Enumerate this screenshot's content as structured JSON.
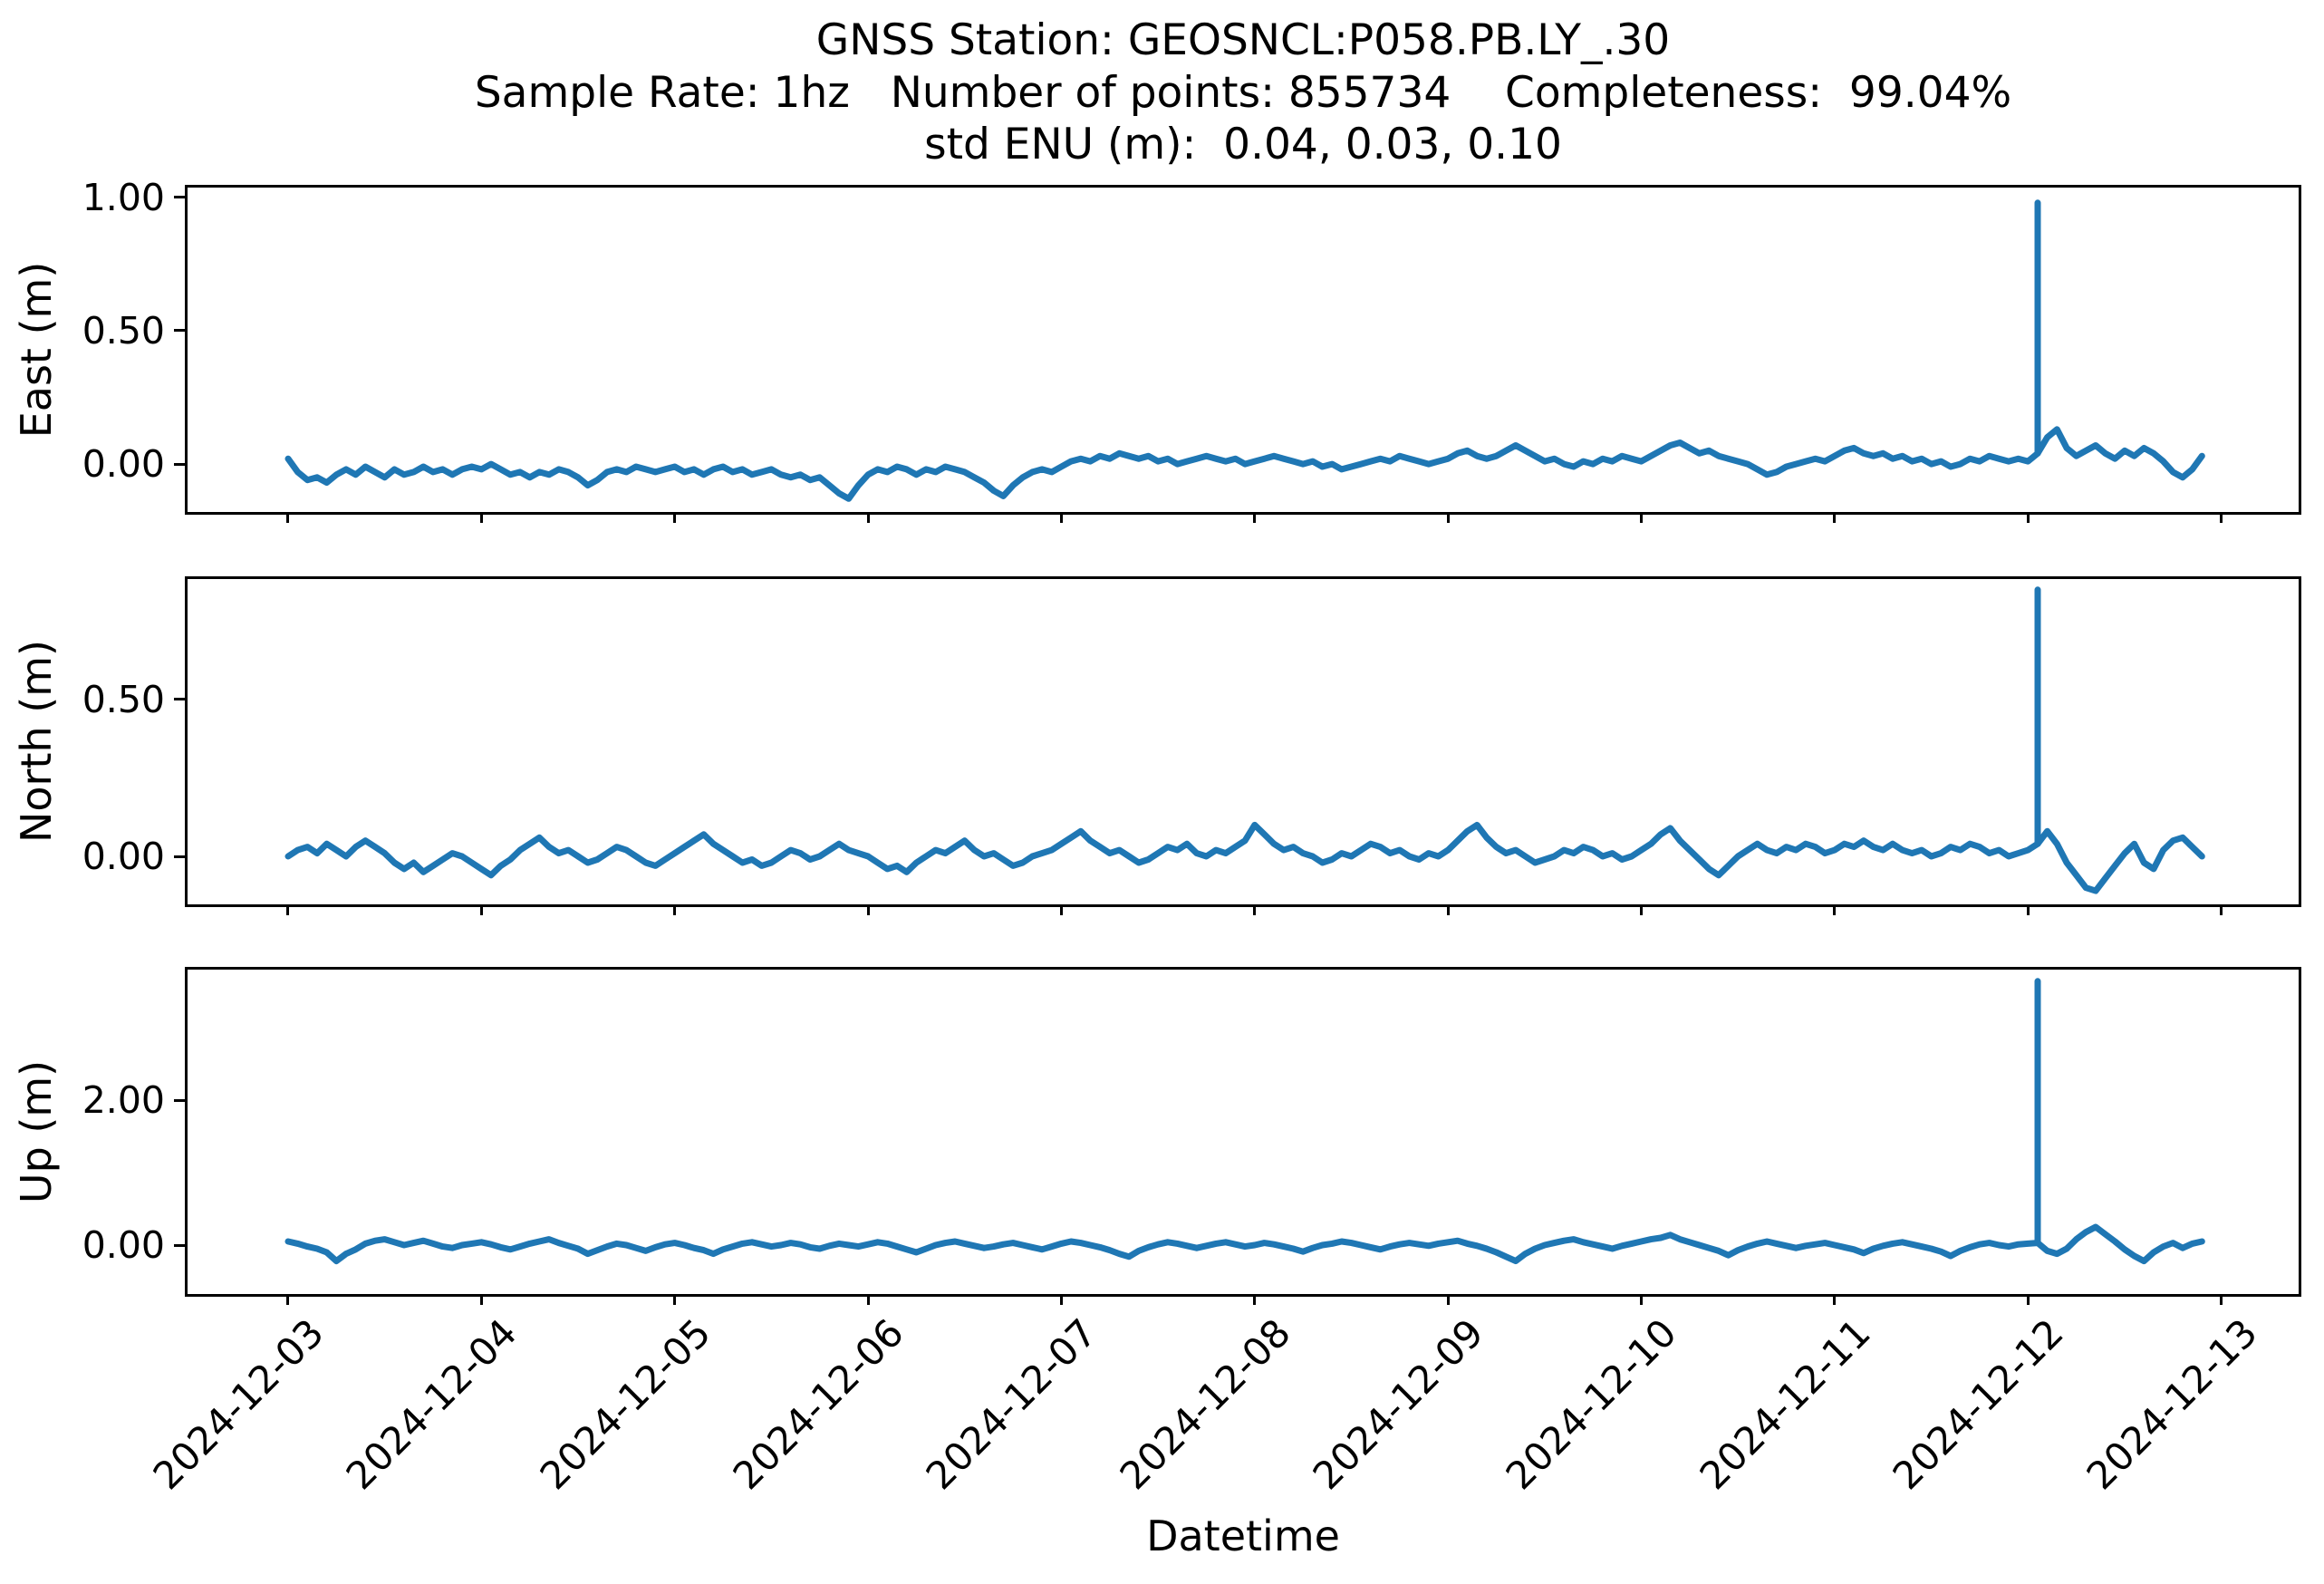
{
  "figure_title": {
    "line1": "GNSS Station: GEOSNCL:P058.PB.LY_.30",
    "line2": "Sample Rate: 1hz   Number of points: 855734    Completeness:  99.04%",
    "line3": "std ENU (m):  0.04, 0.03, 0.10"
  },
  "station": {
    "id": "GEOSNCL:P058.PB.LY_.30",
    "sample_rate": "1hz",
    "number_of_points": "855734",
    "completeness_pct": "99.04%",
    "std_enu_m": [
      "0.04",
      "0.03",
      "0.10"
    ]
  },
  "chart_data": {
    "type": "line",
    "line_color": "#1f77b4",
    "axis_color": "#000000",
    "background": "#ffffff",
    "xlabel": "Datetime",
    "legend": "none",
    "grid": false,
    "xlim_days": [
      -0.52,
      10.4
    ],
    "x_start_day": 0,
    "x_end_day": 9.9,
    "x_ticks": [
      {
        "day": 0,
        "label": "2024-12-03"
      },
      {
        "day": 1,
        "label": "2024-12-04"
      },
      {
        "day": 2,
        "label": "2024-12-05"
      },
      {
        "day": 3,
        "label": "2024-12-06"
      },
      {
        "day": 4,
        "label": "2024-12-07"
      },
      {
        "day": 5,
        "label": "2024-12-08"
      },
      {
        "day": 6,
        "label": "2024-12-09"
      },
      {
        "day": 7,
        "label": "2024-12-10"
      },
      {
        "day": 8,
        "label": "2024-12-11"
      },
      {
        "day": 9,
        "label": "2024-12-12"
      },
      {
        "day": 10,
        "label": "2024-12-13"
      }
    ],
    "spike_day": 9.05,
    "subplots": [
      {
        "id": "east",
        "ylabel": "East (m)",
        "ylim": [
          -0.18,
          1.037
        ],
        "yticks": [
          {
            "v": 1.0,
            "label": "1.00"
          },
          {
            "v": 0.5,
            "label": "0.50"
          },
          {
            "v": 0.0,
            "label": "0.00"
          }
        ],
        "spike_value": 0.98,
        "values": [
          0.02,
          -0.03,
          -0.06,
          -0.05,
          -0.07,
          -0.04,
          -0.02,
          -0.04,
          -0.01,
          -0.03,
          -0.05,
          -0.02,
          -0.04,
          -0.03,
          -0.01,
          -0.03,
          -0.02,
          -0.04,
          -0.02,
          -0.01,
          -0.02,
          0.0,
          -0.02,
          -0.04,
          -0.03,
          -0.05,
          -0.03,
          -0.04,
          -0.02,
          -0.03,
          -0.05,
          -0.08,
          -0.06,
          -0.03,
          -0.02,
          -0.03,
          -0.01,
          -0.02,
          -0.03,
          -0.02,
          -0.01,
          -0.03,
          -0.02,
          -0.04,
          -0.02,
          -0.01,
          -0.03,
          -0.02,
          -0.04,
          -0.03,
          -0.02,
          -0.04,
          -0.05,
          -0.04,
          -0.06,
          -0.05,
          -0.08,
          -0.11,
          -0.13,
          -0.08,
          -0.04,
          -0.02,
          -0.03,
          -0.01,
          -0.02,
          -0.04,
          -0.02,
          -0.03,
          -0.01,
          -0.02,
          -0.03,
          -0.05,
          -0.07,
          -0.1,
          -0.12,
          -0.08,
          -0.05,
          -0.03,
          -0.02,
          -0.03,
          -0.01,
          0.01,
          0.02,
          0.01,
          0.03,
          0.02,
          0.04,
          0.03,
          0.02,
          0.03,
          0.01,
          0.02,
          0.0,
          0.01,
          0.02,
          0.03,
          0.02,
          0.01,
          0.02,
          0.0,
          0.01,
          0.02,
          0.03,
          0.02,
          0.01,
          0.0,
          0.01,
          -0.01,
          0.0,
          -0.02,
          -0.01,
          0.0,
          0.01,
          0.02,
          0.01,
          0.03,
          0.02,
          0.01,
          0.0,
          0.01,
          0.02,
          0.04,
          0.05,
          0.03,
          0.02,
          0.03,
          0.05,
          0.07,
          0.05,
          0.03,
          0.01,
          0.02,
          0.0,
          -0.01,
          0.01,
          0.0,
          0.02,
          0.01,
          0.03,
          0.02,
          0.01,
          0.03,
          0.05,
          0.07,
          0.08,
          0.06,
          0.04,
          0.05,
          0.03,
          0.02,
          0.01,
          0.0,
          -0.02,
          -0.04,
          -0.03,
          -0.01,
          0.0,
          0.01,
          0.02,
          0.01,
          0.03,
          0.05,
          0.06,
          0.04,
          0.03,
          0.04,
          0.02,
          0.03,
          0.01,
          0.02,
          0.0,
          0.01,
          -0.01,
          0.0,
          0.02,
          0.01,
          0.03,
          0.02,
          0.01,
          0.02,
          0.01,
          0.04,
          0.1,
          0.13,
          0.06,
          0.03,
          0.05,
          0.07,
          0.04,
          0.02,
          0.05,
          0.03,
          0.06,
          0.04,
          0.01,
          -0.03,
          -0.05,
          -0.02,
          0.03
        ]
      },
      {
        "id": "north",
        "ylabel": "North (m)",
        "ylim": [
          -0.153,
          0.884
        ],
        "yticks": [
          {
            "v": 0.5,
            "label": "0.50"
          },
          {
            "v": 0.0,
            "label": "0.00"
          }
        ],
        "spike_value": 0.85,
        "values": [
          0.0,
          0.02,
          0.03,
          0.01,
          0.04,
          0.02,
          0.0,
          0.03,
          0.05,
          0.03,
          0.01,
          -0.02,
          -0.04,
          -0.02,
          -0.05,
          -0.03,
          -0.01,
          0.01,
          0.0,
          -0.02,
          -0.04,
          -0.06,
          -0.03,
          -0.01,
          0.02,
          0.04,
          0.06,
          0.03,
          0.01,
          0.02,
          0.0,
          -0.02,
          -0.01,
          0.01,
          0.03,
          0.02,
          0.0,
          -0.02,
          -0.03,
          -0.01,
          0.01,
          0.03,
          0.05,
          0.07,
          0.04,
          0.02,
          0.0,
          -0.02,
          -0.01,
          -0.03,
          -0.02,
          0.0,
          0.02,
          0.01,
          -0.01,
          0.0,
          0.02,
          0.04,
          0.02,
          0.01,
          0.0,
          -0.02,
          -0.04,
          -0.03,
          -0.05,
          -0.02,
          0.0,
          0.02,
          0.01,
          0.03,
          0.05,
          0.02,
          0.0,
          0.01,
          -0.01,
          -0.03,
          -0.02,
          0.0,
          0.01,
          0.02,
          0.04,
          0.06,
          0.08,
          0.05,
          0.03,
          0.01,
          0.02,
          0.0,
          -0.02,
          -0.01,
          0.01,
          0.03,
          0.02,
          0.04,
          0.01,
          0.0,
          0.02,
          0.01,
          0.03,
          0.05,
          0.1,
          0.07,
          0.04,
          0.02,
          0.03,
          0.01,
          0.0,
          -0.02,
          -0.01,
          0.01,
          0.0,
          0.02,
          0.04,
          0.03,
          0.01,
          0.02,
          0.0,
          -0.01,
          0.01,
          0.0,
          0.02,
          0.05,
          0.08,
          0.1,
          0.06,
          0.03,
          0.01,
          0.02,
          0.0,
          -0.02,
          -0.01,
          0.0,
          0.02,
          0.01,
          0.03,
          0.02,
          0.0,
          0.01,
          -0.01,
          0.0,
          0.02,
          0.04,
          0.07,
          0.09,
          0.05,
          0.02,
          -0.01,
          -0.04,
          -0.06,
          -0.03,
          0.0,
          0.02,
          0.04,
          0.02,
          0.01,
          0.03,
          0.02,
          0.04,
          0.03,
          0.01,
          0.02,
          0.04,
          0.03,
          0.05,
          0.03,
          0.02,
          0.04,
          0.02,
          0.01,
          0.02,
          0.0,
          0.01,
          0.03,
          0.02,
          0.04,
          0.03,
          0.01,
          0.02,
          0.0,
          0.01,
          0.02,
          0.04,
          0.08,
          0.04,
          -0.02,
          -0.06,
          -0.1,
          -0.11,
          -0.07,
          -0.03,
          0.01,
          0.04,
          -0.02,
          -0.04,
          0.02,
          0.05,
          0.06,
          0.03,
          0.0
        ]
      },
      {
        "id": "up",
        "ylabel": "Up (m)",
        "ylim": [
          -0.675,
          3.8
        ],
        "yticks": [
          {
            "v": 2.0,
            "label": "2.00"
          },
          {
            "v": 0.0,
            "label": "0.00"
          }
        ],
        "spike_value": 3.64,
        "values": [
          0.05,
          0.02,
          -0.02,
          -0.05,
          -0.1,
          -0.22,
          -0.12,
          -0.06,
          0.02,
          0.06,
          0.08,
          0.04,
          0.0,
          0.03,
          0.06,
          0.02,
          -0.02,
          -0.04,
          0.0,
          0.02,
          0.04,
          0.01,
          -0.03,
          -0.06,
          -0.02,
          0.02,
          0.05,
          0.08,
          0.03,
          -0.01,
          -0.05,
          -0.12,
          -0.07,
          -0.02,
          0.02,
          0.0,
          -0.04,
          -0.08,
          -0.03,
          0.01,
          0.03,
          0.0,
          -0.04,
          -0.07,
          -0.12,
          -0.06,
          -0.02,
          0.02,
          0.04,
          0.01,
          -0.02,
          0.0,
          0.03,
          0.01,
          -0.03,
          -0.05,
          -0.01,
          0.02,
          0.0,
          -0.02,
          0.01,
          0.04,
          0.02,
          -0.02,
          -0.06,
          -0.1,
          -0.05,
          0.0,
          0.03,
          0.05,
          0.02,
          -0.01,
          -0.04,
          -0.02,
          0.01,
          0.03,
          0.0,
          -0.03,
          -0.06,
          -0.02,
          0.02,
          0.05,
          0.03,
          0.0,
          -0.03,
          -0.07,
          -0.12,
          -0.16,
          -0.08,
          -0.03,
          0.01,
          0.04,
          0.02,
          -0.01,
          -0.04,
          -0.01,
          0.02,
          0.04,
          0.01,
          -0.02,
          0.0,
          0.03,
          0.01,
          -0.02,
          -0.05,
          -0.09,
          -0.04,
          0.0,
          0.02,
          0.05,
          0.03,
          0.0,
          -0.03,
          -0.06,
          -0.02,
          0.01,
          0.03,
          0.01,
          -0.01,
          0.02,
          0.04,
          0.06,
          0.02,
          -0.01,
          -0.05,
          -0.1,
          -0.16,
          -0.22,
          -0.12,
          -0.05,
          0.0,
          0.03,
          0.06,
          0.08,
          0.04,
          0.01,
          -0.02,
          -0.05,
          -0.01,
          0.02,
          0.05,
          0.08,
          0.1,
          0.14,
          0.08,
          0.04,
          0.0,
          -0.04,
          -0.08,
          -0.14,
          -0.07,
          -0.02,
          0.02,
          0.05,
          0.02,
          -0.01,
          -0.04,
          -0.01,
          0.01,
          0.03,
          0.0,
          -0.03,
          -0.06,
          -0.11,
          -0.05,
          -0.01,
          0.02,
          0.04,
          0.01,
          -0.02,
          -0.05,
          -0.09,
          -0.15,
          -0.08,
          -0.03,
          0.01,
          0.03,
          0.0,
          -0.02,
          0.01,
          0.02,
          0.03,
          -0.08,
          -0.12,
          -0.05,
          0.08,
          0.18,
          0.25,
          0.15,
          0.05,
          -0.06,
          -0.15,
          -0.22,
          -0.1,
          -0.02,
          0.03,
          -0.04,
          0.02,
          0.05
        ]
      }
    ]
  }
}
